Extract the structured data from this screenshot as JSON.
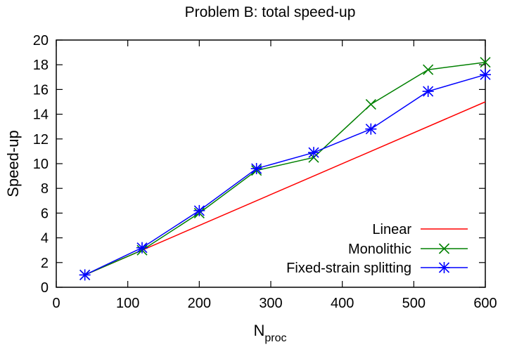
{
  "chart_data": {
    "type": "line",
    "title": "Problem B: total speed-up",
    "xlabel_main": "N",
    "xlabel_sub": "proc",
    "ylabel": "Speed-up",
    "xlim": [
      0,
      600
    ],
    "ylim": [
      0,
      20
    ],
    "xticks": [
      0,
      100,
      200,
      300,
      400,
      500,
      600
    ],
    "yticks": [
      0,
      2,
      4,
      6,
      8,
      10,
      12,
      14,
      16,
      18,
      20
    ],
    "grid": false,
    "legend_position": "bottom-right",
    "series": [
      {
        "name": "Linear",
        "color": "#ff0000",
        "marker": "none",
        "x": [
          40,
          600
        ],
        "y": [
          1,
          15
        ]
      },
      {
        "name": "Monolithic",
        "color": "#008000",
        "marker": "x",
        "x": [
          40,
          120,
          200,
          280,
          360,
          440,
          520,
          600
        ],
        "y": [
          1.0,
          3.0,
          6.0,
          9.45,
          10.5,
          14.8,
          17.6,
          18.2
        ]
      },
      {
        "name": "Fixed-strain splitting",
        "color": "#0000ff",
        "marker": "star",
        "x": [
          40,
          120,
          200,
          280,
          360,
          440,
          520,
          600
        ],
        "y": [
          1.0,
          3.2,
          6.2,
          9.6,
          10.9,
          12.8,
          15.85,
          17.2
        ]
      }
    ]
  }
}
